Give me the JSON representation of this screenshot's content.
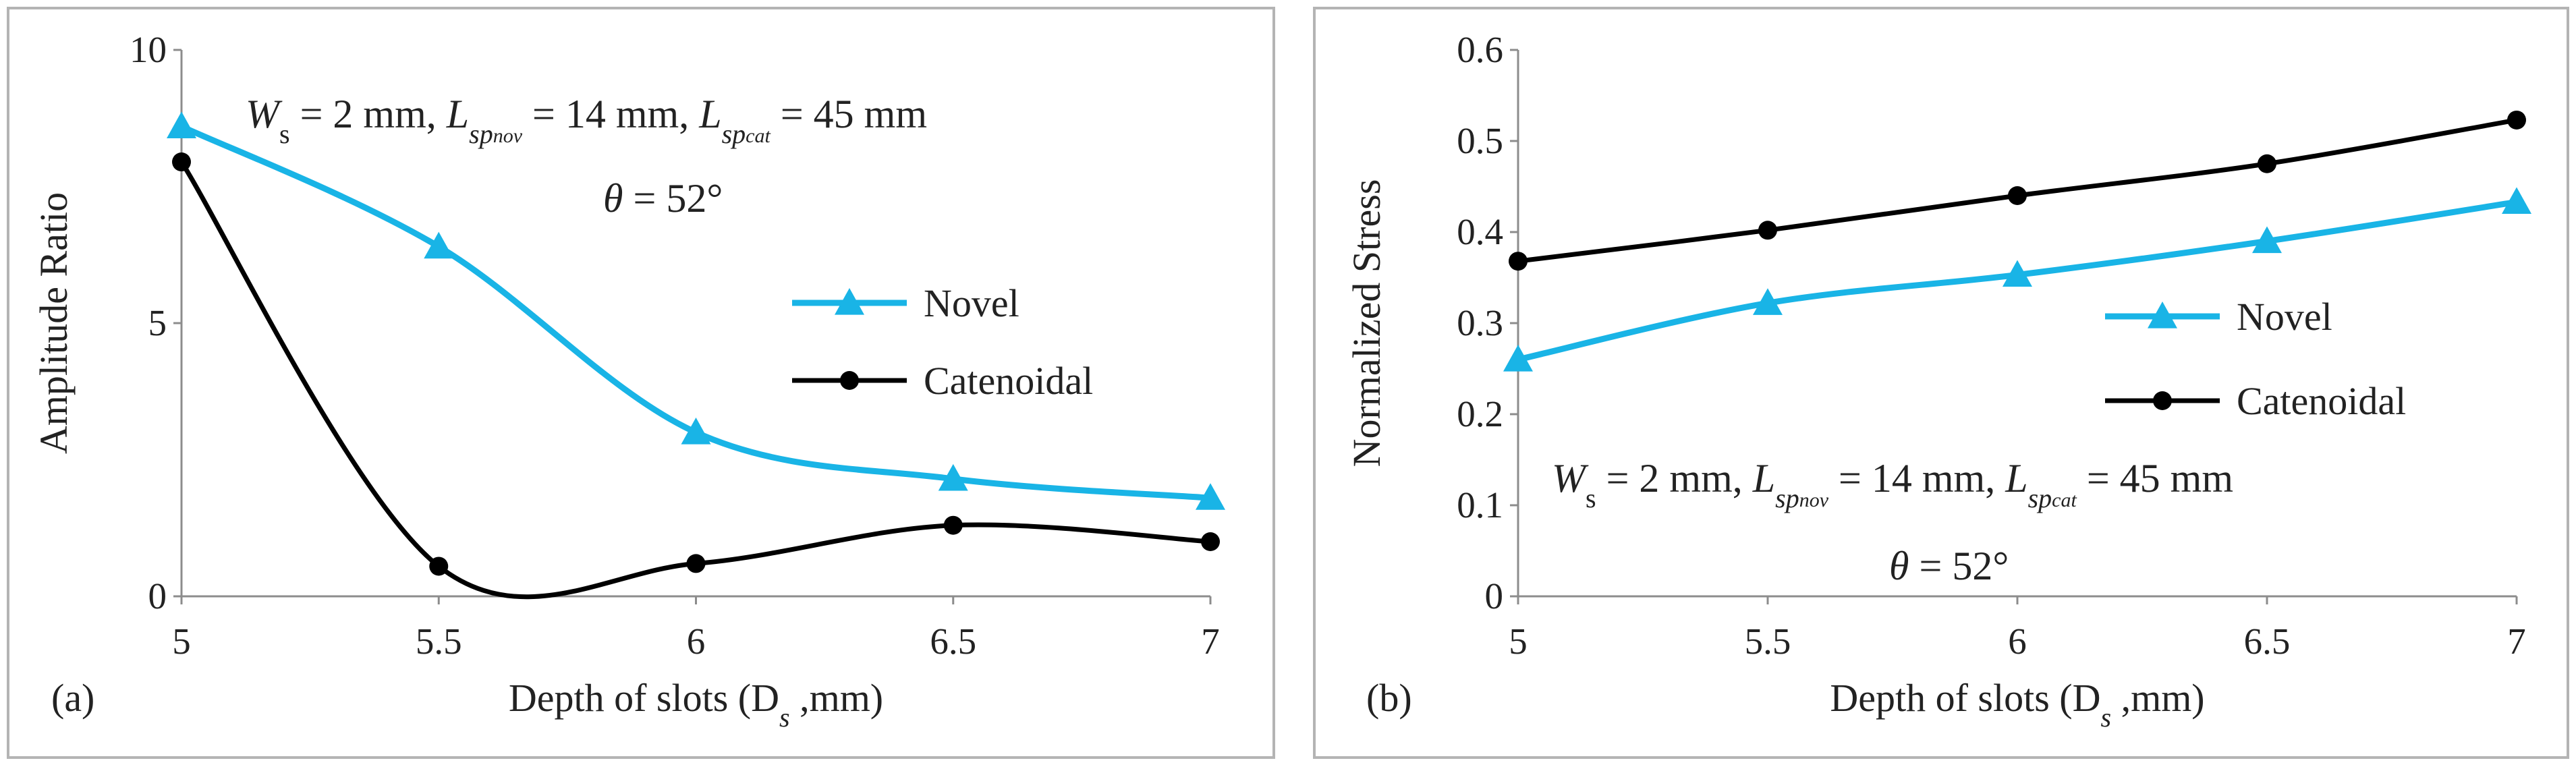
{
  "chart_data": [
    {
      "type": "line",
      "panel_label": "(a)",
      "xlabel": "Depth of slots (D",
      "xlabel_sub": "s",
      "xlabel_unit": " ,mm)",
      "ylabel": "Amplitude Ratio",
      "x": [
        5,
        5.5,
        6,
        6.5,
        7
      ],
      "xticks": [
        "5",
        "5.5",
        "6",
        "6.5",
        "7"
      ],
      "yticks": [
        "0",
        "5",
        "10"
      ],
      "ylim": [
        0,
        10
      ],
      "grid": false,
      "legend_position": "right",
      "series": [
        {
          "name": "Novel",
          "marker": "triangle",
          "color": "#19b4e6",
          "values": [
            8.6,
            6.4,
            3.0,
            2.15,
            1.8
          ]
        },
        {
          "name": "Catenoidal",
          "marker": "circle",
          "color": "#000000",
          "values": [
            7.95,
            0.55,
            0.6,
            1.3,
            1.0
          ]
        }
      ],
      "annotation": {
        "line1": "W_s = 2 mm, L_sp_nov = 14 mm, L_sp_cat = 45 mm",
        "line2": "θ = 52°"
      }
    },
    {
      "type": "line",
      "panel_label": "(b)",
      "xlabel": "Depth of slots (D",
      "xlabel_sub": "s",
      "xlabel_unit": " ,mm)",
      "ylabel": "Normalized  Stress",
      "x": [
        5,
        5.5,
        6,
        6.5,
        7
      ],
      "xticks": [
        "5",
        "5.5",
        "6",
        "6.5",
        "7"
      ],
      "yticks": [
        "0",
        "0.1",
        "0.2",
        "0.3",
        "0.4",
        "0.5",
        "0.6"
      ],
      "ylim": [
        0,
        0.6
      ],
      "grid": false,
      "legend_position": "right",
      "series": [
        {
          "name": "Novel",
          "marker": "triangle",
          "color": "#19b4e6",
          "values": [
            0.26,
            0.322,
            0.353,
            0.39,
            0.433
          ]
        },
        {
          "name": "Catenoidal",
          "marker": "circle",
          "color": "#000000",
          "values": [
            0.368,
            0.402,
            0.44,
            0.475,
            0.523
          ]
        }
      ],
      "annotation": {
        "line1": "W_s = 2 mm, L_sp_nov = 14 mm, L_sp_cat = 45 mm",
        "line2": "θ = 52°"
      }
    }
  ],
  "annotation_parts": {
    "W": "W",
    "s": "s",
    "eq2": " = 2 mm, ",
    "L": "L",
    "sp": "sp",
    "nov": "nov",
    "eq14": " = 14 mm, ",
    "cat": "cat",
    "eq45": " = 45 mm",
    "theta": "θ",
    "eq52": " = 52°"
  }
}
